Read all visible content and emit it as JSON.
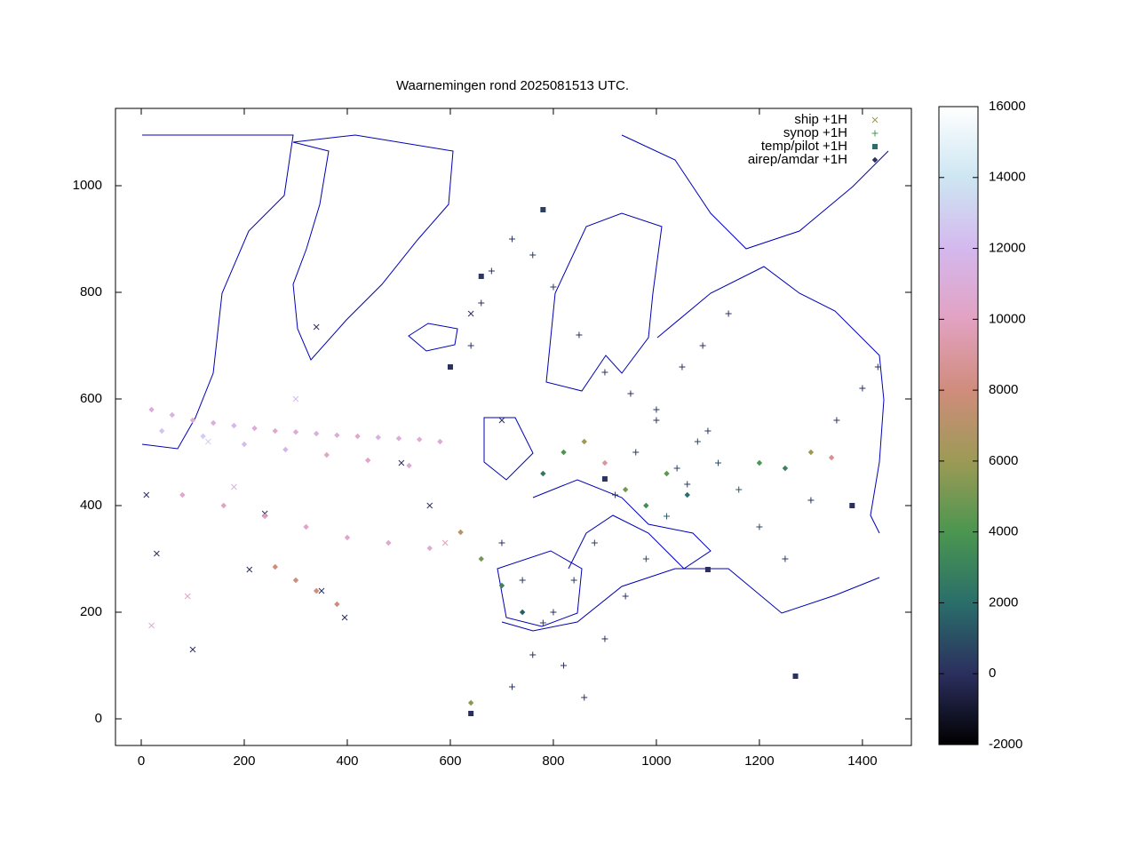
{
  "chart_data": {
    "type": "scatter",
    "title": "Waarnemingen rond 2025081513 UTC.",
    "xlim": [
      -50,
      1495
    ],
    "ylim": [
      -50,
      1145
    ],
    "xticks": [
      0,
      200,
      400,
      600,
      800,
      1000,
      1200,
      1400
    ],
    "yticks": [
      0,
      200,
      400,
      600,
      800,
      1000
    ],
    "clim": [
      -2000,
      16000
    ],
    "cticks": [
      -2000,
      0,
      2000,
      4000,
      6000,
      8000,
      10000,
      12000,
      14000,
      16000
    ],
    "colormap": [
      "#000000",
      "#2b2f5e",
      "#2a6e6a",
      "#4b9650",
      "#9c9a55",
      "#d08c7c",
      "#e2a2c2",
      "#d4b8ee",
      "#cde6f2",
      "#ffffff"
    ],
    "legend": "upper right",
    "series": [
      {
        "name": "ship +1H",
        "marker": "cross",
        "color": "#9c9a55",
        "x": [
          10,
          30,
          100,
          210,
          240,
          350,
          395,
          505,
          560,
          640,
          700,
          340,
          20,
          180,
          90,
          300,
          130,
          590
        ],
        "y": [
          420,
          310,
          130,
          280,
          385,
          240,
          190,
          480,
          400,
          760,
          560,
          735,
          175,
          435,
          230,
          600,
          520,
          330
        ],
        "z": [
          0,
          5,
          2,
          0,
          3,
          0,
          4,
          1,
          0,
          2,
          6,
          0,
          10800,
          11500,
          10200,
          12200,
          13000,
          9800
        ]
      },
      {
        "name": "synop +1H",
        "marker": "plus",
        "color": "#4b9650",
        "x": [
          720,
          760,
          800,
          840,
          880,
          920,
          960,
          1000,
          1040,
          1080,
          1120,
          1160,
          1200,
          1250,
          1300,
          1350,
          1400,
          1430,
          700,
          740,
          780,
          820,
          860,
          900,
          940,
          980,
          1020,
          1060,
          1100,
          640,
          660,
          680,
          720,
          760,
          800,
          850,
          900,
          950,
          1000,
          1050,
          1090,
          1140
        ],
        "y": [
          60,
          120,
          200,
          260,
          330,
          420,
          500,
          560,
          470,
          520,
          480,
          430,
          360,
          300,
          410,
          560,
          620,
          660,
          330,
          260,
          180,
          100,
          40,
          150,
          230,
          300,
          380,
          440,
          540,
          700,
          780,
          840,
          900,
          870,
          810,
          720,
          650,
          610,
          580,
          660,
          700,
          760
        ],
        "z": [
          20,
          50,
          100,
          300,
          500,
          200,
          150,
          80,
          400,
          600,
          900,
          1200,
          700,
          300,
          100,
          50,
          0,
          0,
          10,
          200,
          400,
          30,
          10,
          20,
          50,
          800,
          1500,
          300,
          200,
          100,
          50,
          10,
          0,
          300,
          200,
          100,
          50,
          40,
          100,
          80,
          60,
          20
        ]
      },
      {
        "name": "temp/pilot +1H",
        "marker": "square",
        "color": "#2a6e6a",
        "x": [
          780,
          660,
          1270,
          600,
          900,
          1380,
          1100,
          640
        ],
        "y": [
          955,
          830,
          80,
          660,
          450,
          400,
          280,
          10
        ],
        "z": [
          500,
          300,
          100,
          50,
          200,
          0,
          0,
          0
        ]
      },
      {
        "name": "airep/amdar +1H",
        "marker": "diamond",
        "color": "#2b2f5e",
        "x": [
          20,
          60,
          100,
          140,
          180,
          220,
          260,
          300,
          340,
          380,
          420,
          460,
          500,
          540,
          580,
          40,
          120,
          200,
          280,
          360,
          440,
          520,
          80,
          160,
          240,
          320,
          400,
          480,
          560,
          260,
          300,
          340,
          380,
          620,
          660,
          700,
          740,
          780,
          820,
          860,
          900,
          940,
          980,
          1020,
          1060,
          1200,
          1250,
          1300,
          1340,
          640
        ],
        "y": [
          580,
          570,
          560,
          555,
          550,
          545,
          540,
          538,
          535,
          532,
          530,
          528,
          526,
          524,
          520,
          540,
          530,
          515,
          505,
          495,
          485,
          475,
          420,
          400,
          380,
          360,
          340,
          330,
          320,
          285,
          260,
          240,
          215,
          350,
          300,
          250,
          200,
          460,
          500,
          520,
          480,
          430,
          400,
          460,
          420,
          480,
          470,
          500,
          490,
          30
        ],
        "z": [
          11000,
          11500,
          10800,
          11200,
          12000,
          11000,
          10500,
          10800,
          11200,
          11000,
          10600,
          11400,
          11000,
          10900,
          10700,
          12500,
          13000,
          12200,
          11800,
          10400,
          10200,
          10600,
          10500,
          10000,
          9800,
          10200,
          10400,
          10600,
          10800,
          8000,
          8000,
          8000,
          8000,
          7000,
          5000,
          3000,
          1500,
          2500,
          4000,
          6000,
          9000,
          5000,
          3500,
          4500,
          2000,
          4000,
          3000,
          6000,
          8500,
          5500
        ]
      }
    ]
  }
}
